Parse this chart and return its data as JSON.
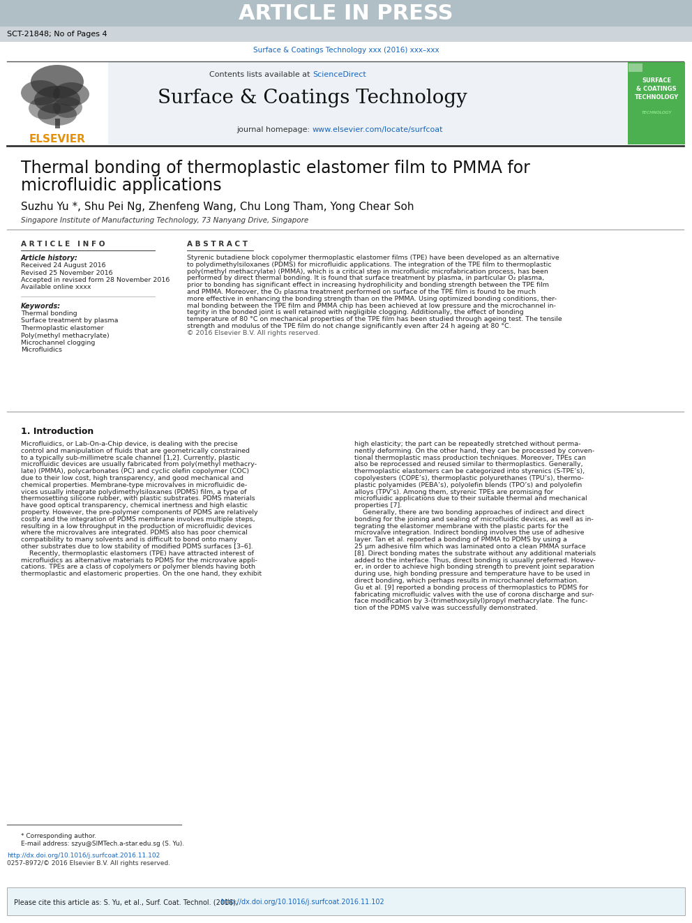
{
  "article_in_press_text": "ARTICLE IN PRESS",
  "article_in_press_bg": "#b0bec5",
  "article_in_press_text_color": "#ffffff",
  "meta_line": "SCT-21848; No of Pages 4",
  "journal_ref": "Surface & Coatings Technology xxx (2016) xxx–xxx",
  "journal_ref_color": "#1565c0",
  "contents_text": "Contents lists available at ",
  "sciencedirect_text": "ScienceDirect",
  "sciencedirect_color": "#1565c0",
  "journal_name": "Surface & Coatings Technology",
  "homepage_text": "journal homepage: ",
  "homepage_url": "www.elsevier.com/locate/surfcoat",
  "homepage_url_color": "#1565c0",
  "elsevier_color": "#e6900a",
  "header_bg": "#f0f4f8",
  "paper_title_line1": "Thermal bonding of thermoplastic elastomer film to PMMA for",
  "paper_title_line2": "microfluidic applications",
  "authors": "Suzhu Yu *, Shu Pei Ng, Zhenfeng Wang, Chu Long Tham, Yong Chear Soh",
  "affiliation": "Singapore Institute of Manufacturing Technology, 73 Nanyang Drive, Singapore",
  "article_info_header": "A R T I C L E   I N F O",
  "abstract_header": "A B S T R A C T",
  "article_history_label": "Article history:",
  "received_line": "Received 24 August 2016",
  "revised_line": "Revised 25 November 2016",
  "accepted_line": "Accepted in revised form 28 November 2016",
  "available_line": "Available online xxxx",
  "keywords_label": "Keywords:",
  "kw1": "Thermal bonding",
  "kw2": "Surface treatment by plasma",
  "kw3": "Thermoplastic elastomer",
  "kw4": "Poly(methyl methacrylate)",
  "kw5": "Microchannel clogging",
  "kw6": "Microfluidics",
  "abstract_text": "Styrenic butadiene block copolymer thermoplastic elastomer films (TPE) have been developed as an alternative\nto polydimethylsiloxanes (PDMS) for microfluidic applications. The integration of the TPE film to thermoplastic\npoly(methyl methacrylate) (PMMA), which is a critical step in microfluidic microfabrication process, has been\nperformed by direct thermal bonding. It is found that surface treatment by plasma, in particular O₂ plasma,\nprior to bonding has significant effect in increasing hydrophilicity and bonding strength between the TPE film\nand PMMA. Moreover, the O₂ plasma treatment performed on surface of the TPE film is found to be much\nmore effective in enhancing the bonding strength than on the PMMA. Using optimized bonding conditions, ther-\nmal bonding between the TPE film and PMMA chip has been achieved at low pressure and the microchannel in-\ntegrity in the bonded joint is well retained with negligible clogging. Additionally, the effect of bonding\ntemperature of 80 °C on mechanical properties of the TPE film has been studied through ageing test. The tensile\nstrength and modulus of the TPE film do not change significantly even after 24 h ageing at 80 °C.\n© 2016 Elsevier B.V. All rights reserved.",
  "intro_header": "1. Introduction",
  "intro_col1": "Microfluidics, or Lab-On-a-Chip device, is dealing with the precise\ncontrol and manipulation of fluids that are geometrically constrained\nto a typically sub-millimetre scale channel [1,2]. Currently, plastic\nmicrofluidic devices are usually fabricated from poly(methyl methacry-\nlate) (PMMA), polycarbonates (PC) and cyclic olefin copolymer (COC)\ndue to their low cost, high transparency, and good mechanical and\nchemical properties. Membrane-type microvalves in microfluidic de-\nvices usually integrate polydimethylsiloxanes (PDMS) film, a type of\nthermosetting silicone rubber, with plastic substrates. PDMS materials\nhave good optical transparency, chemical inertness and high elastic\nproperty. However, the pre-polymer components of PDMS are relatively\ncostly and the integration of PDMS membrane involves multiple steps,\nresulting in a low throughput in the production of microfluidic devices\nwhere the microvalves are integrated. PDMS also has poor chemical\ncompatibility to many solvents and is difficult to bond onto many\nother substrates due to low stability of modified PDMS surfaces [3–6].\n    Recently, thermoplastic elastomers (TPE) have attracted interest of\nmicrofluidics as alternative materials to PDMS for the microvalve appli-\ncations. TPEs are a class of copolymers or polymer blends having both\nthermoplastic and elastomeric properties. On the one hand, they exhibit",
  "intro_col2": "high elasticity; the part can be repeatedly stretched without perma-\nnently deforming. On the other hand, they can be processed by conven-\ntional thermoplastic mass production techniques. Moreover, TPEs can\nalso be reprocessed and reused similar to thermoplastics. Generally,\nthermoplastic elastomers can be categorized into styrenics (S-TPE’s),\ncopolyesters (COPE’s), thermoplastic polyurethanes (TPU’s), thermo-\nplastic polyamides (PEBA’s), polyolefin blends (TPO’s) and polyolefin\nalloys (TPV’s). Among them, styrenic TPEs are promising for\nmicrofluidic applications due to their suitable thermal and mechanical\nproperties [7].\n    Generally, there are two bonding approaches of indirect and direct\nbonding for the joining and sealing of microfluidic devices, as well as in-\ntegrating the elastomer membrane with the plastic parts for the\nmicrovalve integration. Indirect bonding involves the use of adhesive\nlayer. Tan et al. reported a bonding of PMMA to PDMS by using a\n25 μm adhesive film which was laminated onto a clean PMMA surface\n[8]. Direct bonding mates the substrate without any additional materials\nadded to the interface. Thus, direct bonding is usually preferred. Howev-\ner, in order to achieve high bonding strength to prevent joint separation\nduring use, high bonding pressure and temperature have to be used in\ndirect bonding, which perhaps results in microchannel deformation.\nGu et al. [9] reported a bonding process of thermoplastics to PDMS for\nfabricating microfluidic valves with the use of corona discharge and sur-\nface modification by 3-(trimethoxysilyl)propyl methacrylate. The func-\ntion of the PDMS valve was successfully demonstrated.",
  "footnote_star": "* Corresponding author.",
  "footnote_email": "E-mail address: szyu@SIMTech.a-star.edu.sg (S. Yu).",
  "doi_line": "http://dx.doi.org/10.1016/j.surfcoat.2016.11.102",
  "issn_line": "0257-8972/© 2016 Elsevier B.V. All rights reserved.",
  "cite_box_text": "Please cite this article as: S. Yu, et al., Surf. Coat. Technol. (2016), ",
  "cite_box_url": "http://dx.doi.org/10.1016/j.surfcoat.2016.11.102",
  "cite_box_bg": "#e8f4f8",
  "green_cover_bg": "#4caf50",
  "separator_color": "#9e9e9e",
  "page_bg": "#ffffff",
  "text_color": "#000000"
}
